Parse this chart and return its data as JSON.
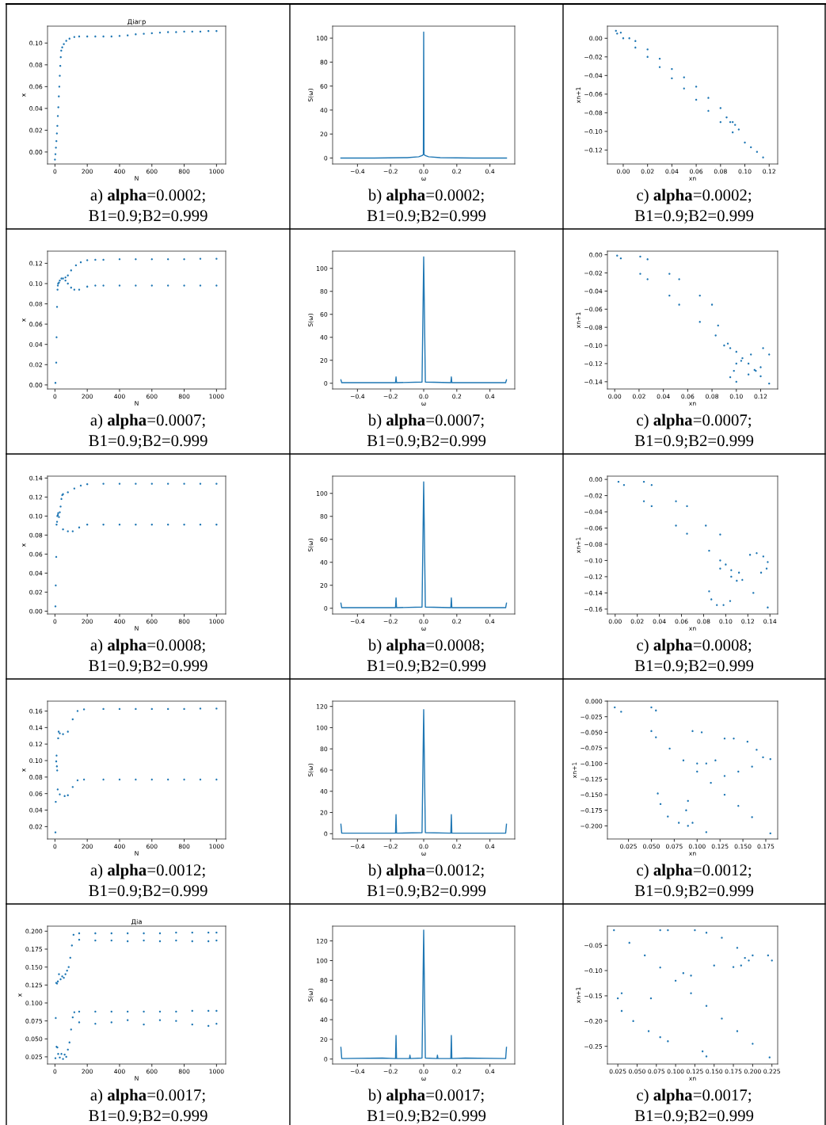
{
  "chart_data": [
    {
      "type": "scatter",
      "title": "Діагр",
      "xlabel": "N",
      "ylabel": "x",
      "marker": "circle",
      "xlim": [
        -46,
        1057
      ],
      "ylim": [
        -0.011,
        0.1155
      ],
      "xticks": [
        0,
        200,
        400,
        600,
        800,
        1000
      ],
      "yticks": [
        {
          "value": 0,
          "label": "0.00"
        },
        {
          "value": 0.02,
          "label": "0.02"
        },
        {
          "value": 0.04,
          "label": "0.04"
        },
        {
          "value": 0.06,
          "label": "0.06"
        },
        {
          "value": 0.08,
          "label": "0.08"
        },
        {
          "value": 0.1,
          "label": "0.10"
        }
      ],
      "annotations": [
        "a) alpha=0.0002;",
        "B1=0.9;B2=0.999"
      ],
      "series": [
        {
          "color": "#1f77b4",
          "x": [
            0,
            3,
            6,
            9,
            12,
            15,
            18,
            21,
            24,
            27,
            30,
            33,
            36,
            39,
            45,
            55,
            70,
            90,
            120,
            150,
            200,
            250,
            300,
            350,
            400,
            450,
            500,
            550,
            600,
            650,
            700,
            750,
            800,
            850,
            900,
            950,
            1000
          ],
          "values": [
            -0.007,
            -0.002,
            0.004,
            0.01,
            0.017,
            0.024,
            0.033,
            0.041,
            0.051,
            0.06,
            0.07,
            0.079,
            0.087,
            0.093,
            0.096,
            0.099,
            0.102,
            0.104,
            0.1055,
            0.106,
            0.106,
            0.106,
            0.106,
            0.106,
            0.1065,
            0.107,
            0.108,
            0.1085,
            0.109,
            0.1095,
            0.11,
            0.11,
            0.1105,
            0.1105,
            0.1105,
            0.111,
            0.111
          ]
        }
      ]
    },
    {
      "type": "line",
      "xlabel": "ω",
      "ylabel": "S(ω)",
      "line_style": "solid",
      "xlim": [
        -0.55,
        0.55
      ],
      "ylim": [
        -5,
        110
      ],
      "xticks": [
        {
          "value": -0.4,
          "label": "−0.4"
        },
        {
          "value": -0.2,
          "label": "−0.2"
        },
        {
          "value": 0,
          "label": "0.0"
        },
        {
          "value": 0.2,
          "label": "0.2"
        },
        {
          "value": 0.4,
          "label": "0.4"
        }
      ],
      "yticks": [
        0,
        20,
        40,
        60,
        80,
        100
      ],
      "annotations": [
        "b) alpha=0.0002;",
        "B1=0.9;B2=0.999"
      ],
      "series": [
        {
          "color": "#1f77b4",
          "x": [
            -0.5,
            -0.3,
            -0.1,
            -0.03,
            -0.01,
            -0.002,
            0,
            0.002,
            0.01,
            0.03,
            0.1,
            0.3,
            0.5
          ],
          "values": [
            0,
            0,
            0.3,
            1,
            2,
            3,
            105,
            3,
            2,
            1,
            0.3,
            0,
            0
          ]
        }
      ]
    },
    {
      "type": "scatter",
      "xlabel": "xn",
      "ylabel": "xn+1",
      "marker": "circle",
      "xlim": [
        -0.013,
        0.127
      ],
      "ylim": [
        -0.135,
        0.013
      ],
      "xticks": [
        {
          "value": 0,
          "label": "0.00"
        },
        {
          "value": 0.02,
          "label": "0.02"
        },
        {
          "value": 0.04,
          "label": "0.04"
        },
        {
          "value": 0.06,
          "label": "0.06"
        },
        {
          "value": 0.08,
          "label": "0.08"
        },
        {
          "value": 0.1,
          "label": "0.10"
        },
        {
          "value": 0.12,
          "label": "0.12"
        }
      ],
      "yticks": [
        {
          "value": 0,
          "label": "0.00"
        },
        {
          "value": -0.02,
          "label": "−0.02"
        },
        {
          "value": -0.04,
          "label": "−0.04"
        },
        {
          "value": -0.06,
          "label": "−0.06"
        },
        {
          "value": -0.08,
          "label": "−0.08"
        },
        {
          "value": -0.1,
          "label": "−0.10"
        },
        {
          "value": -0.12,
          "label": "−0.12"
        }
      ],
      "annotations": [
        "c) alpha=0.0002;",
        "B1=0.9;B2=0.999"
      ],
      "series": [
        {
          "color": "#1f77b4",
          "x": [
            -0.006,
            -0.002,
            0.005,
            0.01,
            0.02,
            0.03,
            0.04,
            0.05,
            0.06,
            0.07,
            0.08,
            0.09,
            -0.005,
            0.0,
            0.01,
            0.02,
            0.03,
            0.04,
            0.05,
            0.06,
            0.07,
            0.08,
            0.09,
            0.1,
            0.105,
            0.11,
            0.115,
            0.085,
            0.088,
            0.092,
            0.095
          ],
          "values": [
            0.008,
            0.006,
            0.0,
            -0.003,
            -0.012,
            -0.022,
            -0.033,
            -0.042,
            -0.052,
            -0.064,
            -0.075,
            -0.09,
            0.005,
            0.0,
            -0.01,
            -0.02,
            -0.031,
            -0.043,
            -0.054,
            -0.066,
            -0.078,
            -0.09,
            -0.101,
            -0.112,
            -0.117,
            -0.122,
            -0.128,
            -0.085,
            -0.09,
            -0.093,
            -0.098
          ]
        }
      ]
    },
    {
      "type": "scatter",
      "xlabel": "N",
      "ylabel": "x",
      "marker": "circle",
      "xlim": [
        -46,
        1057
      ],
      "ylim": [
        -0.004,
        0.132
      ],
      "xticks": [
        0,
        200,
        400,
        600,
        800,
        1000
      ],
      "yticks": [
        {
          "value": 0,
          "label": "0.00"
        },
        {
          "value": 0.02,
          "label": "0.02"
        },
        {
          "value": 0.04,
          "label": "0.04"
        },
        {
          "value": 0.06,
          "label": "0.06"
        },
        {
          "value": 0.08,
          "label": "0.08"
        },
        {
          "value": 0.1,
          "label": "0.10"
        },
        {
          "value": 0.12,
          "label": "0.12"
        }
      ],
      "annotations": [
        "a) alpha=0.0007;",
        "B1=0.9;B2=0.999"
      ],
      "series": [
        {
          "color": "#1f77b4",
          "x": [
            3,
            8,
            10,
            13,
            16,
            18,
            20,
            25,
            30,
            40,
            50,
            65,
            80,
            100,
            130,
            160,
            200,
            250,
            300,
            400,
            500,
            600,
            700,
            800,
            900,
            1000,
            65,
            80,
            100,
            120,
            150,
            200,
            250,
            300,
            400,
            500,
            600,
            700,
            800,
            900,
            1000
          ],
          "values": [
            0.002,
            0.022,
            0.047,
            0.077,
            0.094,
            0.098,
            0.1,
            0.101,
            0.103,
            0.105,
            0.105,
            0.106,
            0.108,
            0.113,
            0.118,
            0.121,
            0.123,
            0.1235,
            0.1235,
            0.124,
            0.124,
            0.124,
            0.124,
            0.124,
            0.1245,
            0.1245,
            0.103,
            0.1,
            0.096,
            0.094,
            0.094,
            0.097,
            0.098,
            0.098,
            0.098,
            0.098,
            0.098,
            0.098,
            0.098,
            0.098,
            0.098
          ]
        }
      ]
    },
    {
      "type": "line",
      "xlabel": "ω",
      "ylabel": "S(ω)",
      "line_style": "solid",
      "xlim": [
        -0.55,
        0.55
      ],
      "ylim": [
        -5,
        115
      ],
      "xticks": [
        {
          "value": -0.4,
          "label": "−0.4"
        },
        {
          "value": -0.2,
          "label": "−0.2"
        },
        {
          "value": 0,
          "label": "0.0"
        },
        {
          "value": 0.2,
          "label": "0.2"
        },
        {
          "value": 0.4,
          "label": "0.4"
        }
      ],
      "yticks": [
        0,
        20,
        40,
        60,
        80,
        100
      ],
      "annotations": [
        "b) alpha=0.0007;",
        "B1=0.9;B2=0.999"
      ],
      "series": [
        {
          "color": "#1f77b4",
          "x": [
            -0.5,
            -0.495,
            -0.17,
            -0.167,
            -0.164,
            -0.01,
            0,
            0.01,
            0.164,
            0.167,
            0.17,
            0.495,
            0.5
          ],
          "values": [
            3,
            0.5,
            0.5,
            5.5,
            0.5,
            1,
            110,
            1,
            0.5,
            5.5,
            0.5,
            0.5,
            3
          ]
        }
      ]
    },
    {
      "type": "scatter",
      "xlabel": "xn",
      "ylabel": "xn+1",
      "marker": "circle",
      "xlim": [
        -0.006,
        0.134
      ],
      "ylim": [
        -0.148,
        0.004
      ],
      "xticks": [
        {
          "value": 0,
          "label": "0.00"
        },
        {
          "value": 0.02,
          "label": "0.02"
        },
        {
          "value": 0.04,
          "label": "0.04"
        },
        {
          "value": 0.06,
          "label": "0.06"
        },
        {
          "value": 0.08,
          "label": "0.08"
        },
        {
          "value": 0.1,
          "label": "0.10"
        },
        {
          "value": 0.12,
          "label": "0.12"
        }
      ],
      "yticks": [
        {
          "value": 0,
          "label": "0.00"
        },
        {
          "value": -0.02,
          "label": "−0.02"
        },
        {
          "value": -0.04,
          "label": "−0.04"
        },
        {
          "value": -0.06,
          "label": "−0.06"
        },
        {
          "value": -0.08,
          "label": "−0.08"
        },
        {
          "value": -0.1,
          "label": "−0.10"
        },
        {
          "value": -0.12,
          "label": "−0.12"
        },
        {
          "value": -0.14,
          "label": "−0.14"
        }
      ],
      "annotations": [
        "c) alpha=0.0007;",
        "B1=0.9;B2=0.999"
      ],
      "series": [
        {
          "color": "#1f77b4",
          "x": [
            0.002,
            0.005,
            0.021,
            0.027,
            0.021,
            0.027,
            0.045,
            0.053,
            0.045,
            0.053,
            0.07,
            0.08,
            0.07,
            0.083,
            0.085,
            0.09,
            0.095,
            0.093,
            0.1,
            0.105,
            0.11,
            0.115,
            0.12,
            0.127,
            0.095,
            0.1,
            0.11,
            0.12,
            0.127,
            0.122,
            0.112,
            0.1,
            0.098,
            0.104,
            0.116
          ],
          "values": [
            -0.001,
            -0.004,
            -0.002,
            -0.005,
            -0.021,
            -0.027,
            -0.021,
            -0.027,
            -0.045,
            -0.055,
            -0.045,
            -0.055,
            -0.074,
            -0.089,
            -0.078,
            -0.1,
            -0.103,
            -0.098,
            -0.107,
            -0.114,
            -0.12,
            -0.127,
            -0.134,
            -0.142,
            -0.135,
            -0.14,
            -0.132,
            -0.124,
            -0.11,
            -0.103,
            -0.11,
            -0.12,
            -0.128,
            -0.117,
            -0.128
          ]
        }
      ]
    },
    {
      "type": "scatter",
      "xlabel": "N",
      "ylabel": "x",
      "marker": "circle",
      "xlim": [
        -46,
        1057
      ],
      "ylim": [
        -0.003,
        0.142
      ],
      "xticks": [
        0,
        200,
        400,
        600,
        800,
        1000
      ],
      "yticks": [
        {
          "value": 0,
          "label": "0.00"
        },
        {
          "value": 0.02,
          "label": "0.02"
        },
        {
          "value": 0.04,
          "label": "0.04"
        },
        {
          "value": 0.06,
          "label": "0.06"
        },
        {
          "value": 0.08,
          "label": "0.08"
        },
        {
          "value": 0.1,
          "label": "0.10"
        },
        {
          "value": 0.12,
          "label": "0.12"
        },
        {
          "value": 0.14,
          "label": "0.14"
        }
      ],
      "annotations": [
        "a) alpha=0.0008;",
        "B1=0.9;B2=0.999"
      ],
      "series": [
        {
          "color": "#1f77b4",
          "x": [
            3,
            5,
            8,
            10,
            13,
            15,
            18,
            20,
            25,
            30,
            35,
            40,
            45,
            50,
            80,
            120,
            160,
            200,
            300,
            400,
            500,
            600,
            700,
            800,
            900,
            1000,
            50,
            80,
            110,
            150,
            200,
            300,
            400,
            500,
            600,
            700,
            800,
            900,
            1000
          ],
          "values": [
            0.005,
            0.027,
            0.057,
            0.091,
            0.094,
            0.1,
            0.101,
            0.103,
            0.099,
            0.104,
            0.11,
            0.118,
            0.122,
            0.123,
            0.125,
            0.129,
            0.132,
            0.1335,
            0.134,
            0.134,
            0.134,
            0.134,
            0.134,
            0.134,
            0.134,
            0.134,
            0.086,
            0.084,
            0.084,
            0.088,
            0.091,
            0.091,
            0.091,
            0.091,
            0.091,
            0.091,
            0.091,
            0.091,
            0.091
          ]
        }
      ]
    },
    {
      "type": "line",
      "xlabel": "ω",
      "ylabel": "S(ω)",
      "line_style": "solid",
      "xlim": [
        -0.55,
        0.55
      ],
      "ylim": [
        -5,
        115
      ],
      "xticks": [
        {
          "value": -0.4,
          "label": "−0.4"
        },
        {
          "value": -0.2,
          "label": "−0.2"
        },
        {
          "value": 0,
          "label": "0.0"
        },
        {
          "value": 0.2,
          "label": "0.2"
        },
        {
          "value": 0.4,
          "label": "0.4"
        }
      ],
      "yticks": [
        0,
        20,
        40,
        60,
        80,
        100
      ],
      "annotations": [
        "b) alpha=0.0008;",
        "B1=0.9;B2=0.999"
      ],
      "series": [
        {
          "color": "#1f77b4",
          "x": [
            -0.5,
            -0.495,
            -0.17,
            -0.167,
            -0.164,
            -0.01,
            0,
            0.01,
            0.164,
            0.167,
            0.17,
            0.495,
            0.5
          ],
          "values": [
            4.5,
            0.5,
            0.5,
            9,
            0.5,
            1,
            110,
            1,
            0.5,
            9,
            0.5,
            0.5,
            4.5
          ]
        }
      ]
    },
    {
      "type": "scatter",
      "xlabel": "xn",
      "ylabel": "xn+1",
      "marker": "circle",
      "xlim": [
        -0.007,
        0.147
      ],
      "ylim": [
        -0.166,
        0.004
      ],
      "xticks": [
        {
          "value": 0,
          "label": "0.00"
        },
        {
          "value": 0.02,
          "label": "0.02"
        },
        {
          "value": 0.04,
          "label": "0.04"
        },
        {
          "value": 0.06,
          "label": "0.06"
        },
        {
          "value": 0.08,
          "label": "0.08"
        },
        {
          "value": 0.1,
          "label": "0.10"
        },
        {
          "value": 0.12,
          "label": "0.12"
        },
        {
          "value": 0.14,
          "label": "0.14"
        }
      ],
      "yticks": [
        {
          "value": 0,
          "label": "0.00"
        },
        {
          "value": -0.02,
          "label": "−0.02"
        },
        {
          "value": -0.04,
          "label": "−0.04"
        },
        {
          "value": -0.06,
          "label": "−0.06"
        },
        {
          "value": -0.08,
          "label": "−0.08"
        },
        {
          "value": -0.1,
          "label": "−0.10"
        },
        {
          "value": -0.12,
          "label": "−0.12"
        },
        {
          "value": -0.14,
          "label": "−0.14"
        },
        {
          "value": -0.16,
          "label": "−0.16"
        }
      ],
      "annotations": [
        "c) alpha=0.0008;",
        "B1=0.9;B2=0.999"
      ],
      "series": [
        {
          "color": "#1f77b4",
          "x": [
            0.003,
            0.008,
            0.026,
            0.033,
            0.026,
            0.033,
            0.055,
            0.065,
            0.055,
            0.065,
            0.082,
            0.095,
            0.085,
            0.095,
            0.105,
            0.115,
            0.125,
            0.138,
            0.122,
            0.128,
            0.134,
            0.138,
            0.137,
            0.132,
            0.085,
            0.087,
            0.092,
            0.098,
            0.104,
            0.095,
            0.1,
            0.105,
            0.11,
            0.112
          ],
          "values": [
            -0.003,
            -0.007,
            -0.003,
            -0.007,
            -0.027,
            -0.033,
            -0.027,
            -0.033,
            -0.057,
            -0.067,
            -0.057,
            -0.068,
            -0.088,
            -0.1,
            -0.112,
            -0.124,
            -0.14,
            -0.158,
            -0.093,
            -0.091,
            -0.095,
            -0.102,
            -0.11,
            -0.115,
            -0.138,
            -0.148,
            -0.155,
            -0.155,
            -0.15,
            -0.11,
            -0.105,
            -0.12,
            -0.125,
            -0.115
          ]
        }
      ]
    },
    {
      "type": "scatter",
      "xlabel": "N",
      "ylabel": "x",
      "marker": "circle",
      "xlim": [
        -46,
        1057
      ],
      "ylim": [
        0.005,
        0.172
      ],
      "xticks": [
        0,
        200,
        400,
        600,
        800,
        1000
      ],
      "yticks": [
        {
          "value": 0.02,
          "label": "0.02"
        },
        {
          "value": 0.04,
          "label": "0.04"
        },
        {
          "value": 0.06,
          "label": "0.06"
        },
        {
          "value": 0.08,
          "label": "0.08"
        },
        {
          "value": 0.1,
          "label": "0.10"
        },
        {
          "value": 0.12,
          "label": "0.12"
        },
        {
          "value": 0.14,
          "label": "0.14"
        },
        {
          "value": 0.16,
          "label": "0.16"
        }
      ],
      "annotations": [
        "a) alpha=0.0012;",
        "B1=0.9;B2=0.999"
      ],
      "series": [
        {
          "color": "#1f77b4",
          "x": [
            3,
            5,
            8,
            10,
            12,
            14,
            17,
            20,
            23,
            30,
            50,
            80,
            110,
            140,
            180,
            300,
            400,
            500,
            600,
            700,
            800,
            900,
            1000,
            30,
            60,
            80,
            110,
            140,
            180,
            300,
            400,
            500,
            600,
            700,
            800,
            900,
            1000
          ],
          "values": [
            0.013,
            0.05,
            0.099,
            0.106,
            0.093,
            0.088,
            0.065,
            0.127,
            0.135,
            0.133,
            0.132,
            0.135,
            0.15,
            0.16,
            0.162,
            0.1625,
            0.1625,
            0.1625,
            0.1625,
            0.1625,
            0.1625,
            0.163,
            0.163,
            0.059,
            0.057,
            0.058,
            0.068,
            0.076,
            0.077,
            0.077,
            0.077,
            0.077,
            0.077,
            0.077,
            0.077,
            0.077,
            0.077
          ]
        }
      ]
    },
    {
      "type": "line",
      "xlabel": "ω",
      "ylabel": "S(ω)",
      "line_style": "solid",
      "xlim": [
        -0.55,
        0.55
      ],
      "ylim": [
        -5,
        125
      ],
      "xticks": [
        {
          "value": -0.4,
          "label": "−0.4"
        },
        {
          "value": -0.2,
          "label": "−0.2"
        },
        {
          "value": 0,
          "label": "0.0"
        },
        {
          "value": 0.2,
          "label": "0.2"
        },
        {
          "value": 0.4,
          "label": "0.4"
        }
      ],
      "yticks": [
        0,
        20,
        40,
        60,
        80,
        100,
        120
      ],
      "annotations": [
        "b) alpha=0.0012;",
        "B1=0.9;B2=0.999"
      ],
      "series": [
        {
          "color": "#1f77b4",
          "x": [
            -0.5,
            -0.495,
            -0.17,
            -0.167,
            -0.164,
            -0.01,
            0,
            0.01,
            0.164,
            0.167,
            0.17,
            0.495,
            0.5
          ],
          "values": [
            9,
            0.5,
            0.5,
            18,
            0.5,
            1,
            117,
            1,
            0.5,
            18,
            0.5,
            0.5,
            9
          ]
        }
      ]
    },
    {
      "type": "scatter",
      "xlabel": "xn",
      "ylabel": "xn+1",
      "marker": "circle",
      "xlim": [
        0.002,
        0.188
      ],
      "ylim": [
        -0.221,
        0.0
      ],
      "xticks": [
        {
          "value": 0.025,
          "label": "0.025"
        },
        {
          "value": 0.05,
          "label": "0.050"
        },
        {
          "value": 0.075,
          "label": "0.075"
        },
        {
          "value": 0.1,
          "label": "0.100"
        },
        {
          "value": 0.125,
          "label": "0.125"
        },
        {
          "value": 0.15,
          "label": "0.150"
        },
        {
          "value": 0.175,
          "label": "0.175"
        }
      ],
      "yticks": [
        {
          "value": 0,
          "label": "0.000"
        },
        {
          "value": -0.025,
          "label": "−0.025"
        },
        {
          "value": -0.05,
          "label": "−0.050"
        },
        {
          "value": -0.075,
          "label": "−0.075"
        },
        {
          "value": -0.1,
          "label": "−0.100"
        },
        {
          "value": -0.125,
          "label": "−0.125"
        },
        {
          "value": -0.15,
          "label": "−0.150"
        },
        {
          "value": -0.175,
          "label": "−0.175"
        },
        {
          "value": -0.2,
          "label": "−0.200"
        }
      ],
      "annotations": [
        "c) alpha=0.0012;",
        "B1=0.9;B2=0.999"
      ],
      "series": [
        {
          "color": "#1f77b4",
          "x": [
            0.01,
            0.017,
            0.05,
            0.055,
            0.05,
            0.095,
            0.105,
            0.055,
            0.07,
            0.085,
            0.1,
            0.115,
            0.13,
            0.145,
            0.16,
            0.18,
            0.13,
            0.145,
            0.16,
            0.18,
            0.13,
            0.14,
            0.155,
            0.165,
            0.172,
            0.057,
            0.06,
            0.068,
            0.08,
            0.09,
            0.09,
            0.088,
            0.095,
            0.11,
            0.1,
            0.11,
            0.12
          ],
          "values": [
            -0.01,
            -0.017,
            -0.01,
            -0.015,
            -0.048,
            -0.048,
            -0.05,
            -0.058,
            -0.076,
            -0.095,
            -0.113,
            -0.131,
            -0.15,
            -0.168,
            -0.186,
            -0.212,
            -0.12,
            -0.113,
            -0.105,
            -0.093,
            -0.06,
            -0.06,
            -0.065,
            -0.078,
            -0.09,
            -0.148,
            -0.165,
            -0.185,
            -0.195,
            -0.2,
            -0.16,
            -0.175,
            -0.195,
            -0.21,
            -0.1,
            -0.1,
            -0.095
          ]
        }
      ]
    },
    {
      "type": "scatter",
      "title": "Діа",
      "xlabel": "N",
      "ylabel": "x",
      "marker": "circle",
      "xlim": [
        -46,
        1057
      ],
      "ylim": [
        0.015,
        0.207
      ],
      "xticks": [
        0,
        200,
        400,
        600,
        800,
        1000
      ],
      "yticks": [
        {
          "value": 0.025,
          "label": "0.025"
        },
        {
          "value": 0.05,
          "label": "0.050"
        },
        {
          "value": 0.075,
          "label": "0.075"
        },
        {
          "value": 0.1,
          "label": "0.100"
        },
        {
          "value": 0.125,
          "label": "0.125"
        },
        {
          "value": 0.15,
          "label": "0.150"
        },
        {
          "value": 0.175,
          "label": "0.175"
        },
        {
          "value": 0.2,
          "label": "0.200"
        }
      ],
      "annotations": [
        "a) alpha=0.0017;",
        "B1=0.9;B2=0.999"
      ],
      "series": [
        {
          "color": "#1f77b4",
          "x": [
            3,
            5,
            8,
            10,
            13,
            15,
            18,
            20,
            25,
            30,
            35,
            40,
            45,
            50,
            55,
            60,
            65,
            70,
            75,
            80,
            85,
            90,
            95,
            100,
            105,
            110,
            115,
            120,
            150,
            250,
            350,
            450,
            550,
            650,
            750,
            850,
            950,
            1000,
            150,
            250,
            350,
            450,
            550,
            650,
            750,
            850,
            950,
            1000,
            150,
            250,
            350,
            450,
            550,
            650,
            750,
            850,
            950,
            1000,
            150,
            250,
            350,
            450,
            550,
            650,
            750,
            850,
            950,
            1000
          ],
          "values": [
            0.023,
            0.079,
            0.128,
            0.039,
            0.127,
            0.038,
            0.13,
            0.029,
            0.14,
            0.024,
            0.133,
            0.029,
            0.137,
            0.022,
            0.135,
            0.028,
            0.14,
            0.025,
            0.145,
            0.035,
            0.15,
            0.045,
            0.163,
            0.063,
            0.18,
            0.08,
            0.195,
            0.087,
            0.197,
            0.197,
            0.197,
            0.197,
            0.197,
            0.197,
            0.198,
            0.198,
            0.198,
            0.198,
            0.188,
            0.187,
            0.187,
            0.186,
            0.187,
            0.186,
            0.187,
            0.186,
            0.186,
            0.187,
            0.088,
            0.088,
            0.088,
            0.088,
            0.088,
            0.088,
            0.088,
            0.089,
            0.089,
            0.089,
            0.073,
            0.071,
            0.073,
            0.076,
            0.07,
            0.076,
            0.075,
            0.07,
            0.068,
            0.071
          ]
        }
      ]
    },
    {
      "type": "line",
      "xlabel": "ω",
      "ylabel": "S(ω)",
      "line_style": "solid",
      "xlim": [
        -0.55,
        0.55
      ],
      "ylim": [
        -5,
        135
      ],
      "xticks": [
        {
          "value": -0.4,
          "label": "−0.4"
        },
        {
          "value": -0.2,
          "label": "−0.2"
        },
        {
          "value": 0,
          "label": "0.0"
        },
        {
          "value": 0.2,
          "label": "0.2"
        },
        {
          "value": 0.4,
          "label": "0.4"
        }
      ],
      "yticks": [
        0,
        20,
        40,
        60,
        80,
        100,
        120
      ],
      "annotations": [
        "b) alpha=0.0017;",
        "B1=0.9;B2=0.999"
      ],
      "series": [
        {
          "color": "#1f77b4",
          "x": [
            -0.5,
            -0.495,
            -0.25,
            -0.17,
            -0.167,
            -0.164,
            -0.086,
            -0.083,
            -0.08,
            -0.01,
            0,
            0.01,
            0.08,
            0.083,
            0.086,
            0.164,
            0.167,
            0.17,
            0.25,
            0.495,
            0.5
          ],
          "values": [
            12,
            0.5,
            1,
            0.5,
            24,
            0.5,
            0.5,
            4,
            0.5,
            1,
            131,
            1,
            0.5,
            4,
            0.5,
            0.5,
            24,
            0.5,
            1,
            0.5,
            12
          ]
        }
      ]
    },
    {
      "type": "scatter",
      "xlabel": "xn",
      "ylabel": "xn+1",
      "marker": "circle",
      "xlim": [
        0.0115,
        0.2325
      ],
      "ylim": [
        -0.285,
        -0.012
      ],
      "xticks": [
        {
          "value": 0.025,
          "label": "0.025"
        },
        {
          "value": 0.05,
          "label": "0.050"
        },
        {
          "value": 0.075,
          "label": "0.075"
        },
        {
          "value": 0.1,
          "label": "0.100"
        },
        {
          "value": 0.125,
          "label": "0.125"
        },
        {
          "value": 0.15,
          "label": "0.150"
        },
        {
          "value": 0.175,
          "label": "0.175"
        },
        {
          "value": 0.2,
          "label": "0.200"
        },
        {
          "value": 0.225,
          "label": "0.225"
        }
      ],
      "yticks": [
        {
          "value": -0.05,
          "label": "−0.05"
        },
        {
          "value": -0.1,
          "label": "−0.10"
        },
        {
          "value": -0.15,
          "label": "−0.15"
        },
        {
          "value": -0.2,
          "label": "−0.20"
        },
        {
          "value": -0.25,
          "label": "−0.25"
        }
      ],
      "annotations": [
        "c) alpha=0.0017;",
        "B1=0.9;B2=0.999"
      ],
      "series": [
        {
          "color": "#1f77b4",
          "x": [
            0.02,
            0.04,
            0.06,
            0.08,
            0.1,
            0.12,
            0.14,
            0.16,
            0.18,
            0.2,
            0.222,
            0.125,
            0.14,
            0.16,
            0.18,
            0.19,
            0.195,
            0.2,
            0.185,
            0.175,
            0.22,
            0.225,
            0.03,
            0.025,
            0.03,
            0.045,
            0.065,
            0.08,
            0.09,
            0.068,
            0.135,
            0.14,
            0.08,
            0.09,
            0.11,
            0.12,
            0.15
          ],
          "values": [
            -0.02,
            -0.045,
            -0.07,
            -0.094,
            -0.12,
            -0.145,
            -0.17,
            -0.195,
            -0.22,
            -0.245,
            -0.272,
            -0.02,
            -0.025,
            -0.035,
            -0.055,
            -0.075,
            -0.08,
            -0.07,
            -0.09,
            -0.093,
            -0.07,
            -0.08,
            -0.145,
            -0.155,
            -0.18,
            -0.2,
            -0.22,
            -0.232,
            -0.24,
            -0.155,
            -0.26,
            -0.27,
            -0.02,
            -0.02,
            -0.105,
            -0.11,
            -0.09
          ]
        }
      ]
    }
  ]
}
